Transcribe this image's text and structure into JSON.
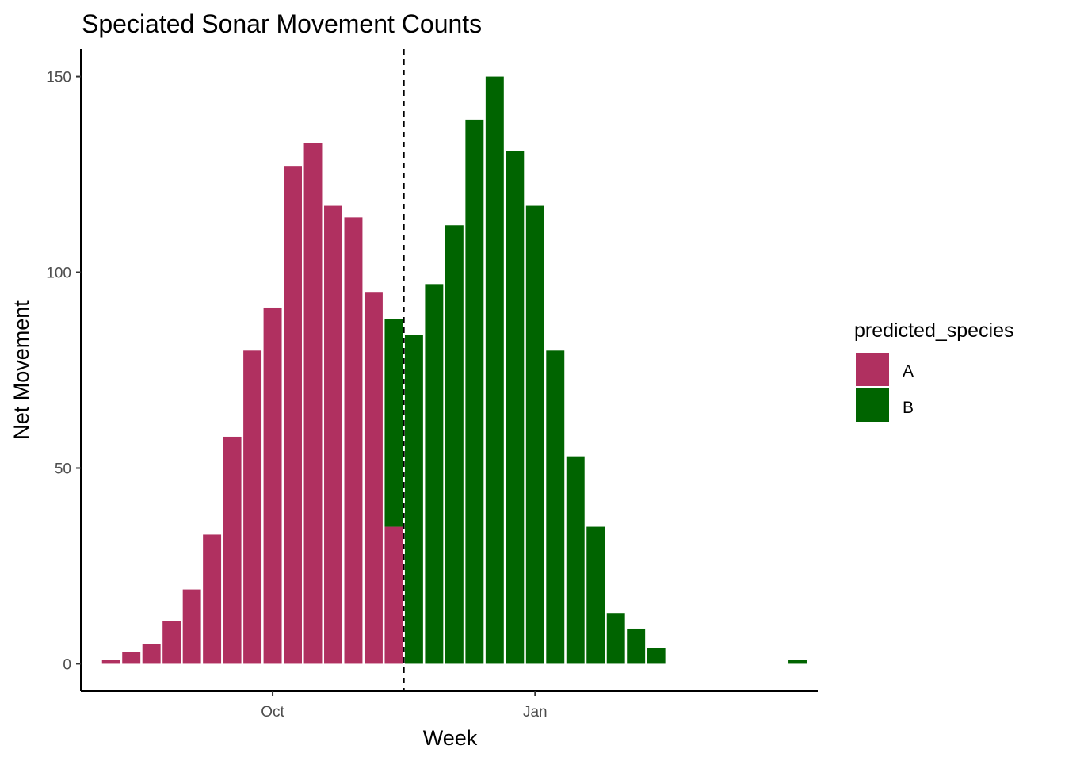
{
  "colors": {
    "A": "#B03060",
    "B": "#006400"
  },
  "chart_data": {
    "type": "bar",
    "stacked": true,
    "title": "Speciated Sonar Movement Counts",
    "xlabel": "Week",
    "ylabel": "Net Movement",
    "x_tick_labels": [
      "Oct",
      "Jan"
    ],
    "x_tick_weeks": [
      9,
      22
    ],
    "weeks": [
      1,
      2,
      3,
      4,
      5,
      6,
      7,
      8,
      9,
      10,
      11,
      12,
      13,
      14,
      15,
      16,
      17,
      18,
      19,
      20,
      21,
      22,
      23,
      24,
      25,
      26,
      27,
      28,
      29,
      30,
      31,
      32,
      33,
      35
    ],
    "y_ticks": [
      0,
      50,
      100,
      150
    ],
    "ylim": [
      -7,
      157
    ],
    "xlim": [
      -0.5,
      36
    ],
    "legend_position": "right",
    "grid": false,
    "vline": {
      "week": 15.5,
      "style": "dashed"
    },
    "series": [
      {
        "name": "A",
        "values": [
          1,
          3,
          5,
          11,
          19,
          33,
          58,
          80,
          91,
          127,
          133,
          117,
          114,
          95,
          35,
          0,
          0,
          0,
          0,
          0,
          0,
          0,
          0,
          0,
          0,
          0,
          0,
          0,
          0,
          0,
          0,
          0,
          0,
          0
        ]
      },
      {
        "name": "B",
        "values": [
          0,
          0,
          0,
          0,
          0,
          0,
          0,
          0,
          0,
          0,
          0,
          0,
          0,
          0,
          53,
          84,
          97,
          112,
          139,
          150,
          131,
          117,
          80,
          53,
          35,
          13,
          9,
          4,
          0,
          0,
          0,
          0,
          0,
          1
        ]
      }
    ]
  },
  "legend": {
    "title": "predicted_species",
    "items": [
      "A",
      "B"
    ]
  }
}
